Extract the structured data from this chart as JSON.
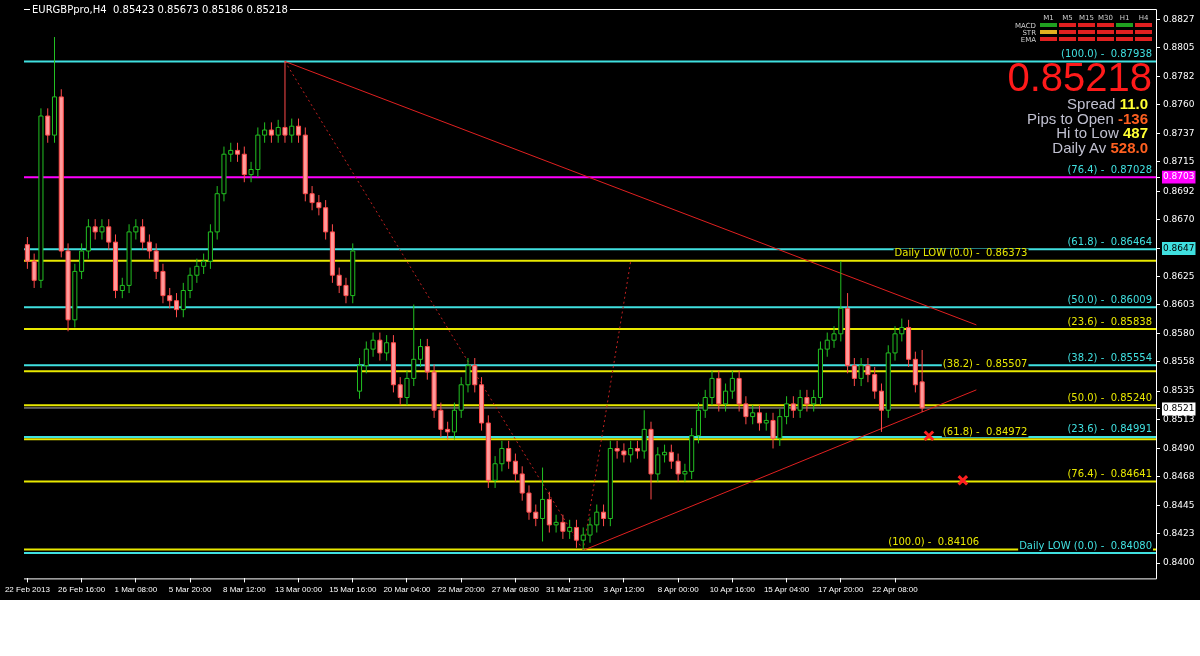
{
  "chart_data": {
    "type": "candlestick",
    "title": "EURGBPpro,H4  0.85423 0.85673 0.85186 0.85218",
    "annotations": [
      "M1",
      "M5",
      "M15",
      "M30",
      "H1",
      "H4",
      "MACD",
      "STR",
      "EMA",
      "0.85218",
      "Spread",
      "11.0",
      "Pips to Open",
      "-136",
      "Hi to Low",
      "487",
      "Daily Av",
      "528.0",
      {
        "text": "(100.0) -  0.87938",
        "y": 0.87938
      },
      {
        "text": "(76.4) -  0.87028",
        "y": 0.87028
      },
      {
        "text": "(61.8) -  0.86464",
        "y": 0.86464
      },
      {
        "text": "(50.0) -  0.86009",
        "y": 0.86009
      },
      {
        "text": "(38.2) -  0.85554",
        "y": 0.85554
      },
      {
        "text": "(23.6) -  0.84991",
        "y": 0.84991
      },
      {
        "text": "Daily LOW (0.0) -  0.84080",
        "y": 0.8408
      },
      {
        "text": "Daily LOW (0.0) -  0.86373",
        "y": 0.86373
      },
      {
        "text": "(23.6) -  0.85838",
        "y": 0.85838
      },
      {
        "text": "(38.2) -  0.85507",
        "y": 0.85507
      },
      {
        "text": "(50.0) -  0.85240",
        "y": 0.8524
      },
      {
        "text": "(61.8) -  0.84972",
        "y": 0.84972
      },
      {
        "text": "(76.4) -  0.84641",
        "y": 0.84641
      },
      {
        "text": "(100.0) -  0.84106",
        "y": 0.84106
      }
    ],
    "ylim": [
      0.8388,
      0.8835
    ],
    "yticks": [
      0.8827,
      0.8805,
      0.8782,
      {
        "value": 0.876,
        "label": "0.8760"
      },
      0.8737,
      0.8715,
      0.8692,
      {
        "value": 0.867,
        "label": "0.8670"
      },
      0.8647,
      0.8625,
      0.8603,
      {
        "value": 0.858,
        "label": "0.8580"
      },
      0.8558,
      0.8535,
      0.8513,
      {
        "value": 0.849,
        "label": "0.8490"
      },
      0.8468,
      0.8445,
      0.8423,
      {
        "value": 0.84,
        "label": "0.8400"
      },
      0.8521,
      0.8703
    ],
    "ref_lines": [
      {
        "axis": "y",
        "value": 0.87938,
        "color": "#40e0e0"
      },
      {
        "axis": "y",
        "value": 0.86464,
        "color": "#40e0e0"
      },
      {
        "axis": "y",
        "value": 0.86009,
        "color": "#40e0e0"
      },
      {
        "axis": "y",
        "value": 0.85554,
        "color": "#40e0e0"
      },
      {
        "axis": "y",
        "value": 0.84991,
        "color": "#40e0e0"
      },
      {
        "axis": "y",
        "value": 0.8408,
        "color": "#40e0e0"
      },
      {
        "axis": "y",
        "value": 0.86373,
        "color": "#e8e800"
      },
      {
        "axis": "y",
        "value": 0.85838,
        "color": "#e8e800"
      },
      {
        "axis": "y",
        "value": 0.85507,
        "color": "#e8e800"
      },
      {
        "axis": "y",
        "value": 0.8524,
        "color": "#e8e800"
      },
      {
        "axis": "y",
        "value": 0.84972,
        "color": "#e8e800"
      },
      {
        "axis": "y",
        "value": 0.84641,
        "color": "#e8e800"
      },
      {
        "axis": "y",
        "value": 0.84106,
        "color": "#e8e800"
      },
      {
        "axis": "y",
        "value": 0.85218,
        "color": "#b0b0b0"
      },
      {
        "axis": "y",
        "value": 0.8703,
        "color": "#ff00ff"
      }
    ],
    "categories": [
      "22 Feb 2013",
      null,
      null,
      null,
      null,
      null,
      null,
      null,
      "26 Feb 16:00",
      null,
      null,
      null,
      null,
      null,
      null,
      null,
      "1 Mar 08:00",
      null,
      null,
      null,
      null,
      null,
      null,
      null,
      "5 Mar 20:00",
      null,
      null,
      null,
      null,
      null,
      null,
      null,
      "8 Mar 12:00",
      null,
      null,
      null,
      null,
      null,
      null,
      null,
      "13 Mar 00:00",
      null,
      null,
      null,
      null,
      null,
      null,
      null,
      "15 Mar 16:00",
      null,
      null,
      null,
      null,
      null,
      null,
      null,
      "20 Mar 04:00",
      null,
      null,
      null,
      null,
      null,
      null,
      null,
      "22 Mar 20:00",
      null,
      null,
      null,
      null,
      null,
      null,
      null,
      "27 Mar 08:00",
      null,
      null,
      null,
      null,
      null,
      null,
      null,
      "31 Mar 21:00",
      null,
      null,
      null,
      null,
      null,
      null,
      null,
      "3 Apr 12:00",
      null,
      null,
      null,
      null,
      null,
      null,
      null,
      "8 Apr 00:00",
      null,
      null,
      null,
      null,
      null,
      null,
      null,
      "10 Apr 16:00",
      null,
      null,
      null,
      null,
      null,
      null,
      null,
      "15 Apr 04:00",
      null,
      null,
      null,
      null,
      null,
      null,
      null,
      "17 Apr 20:00",
      null,
      null,
      null,
      null,
      null,
      null,
      null,
      "22 Apr 08:00",
      null,
      null,
      null,
      null,
      null,
      null,
      null,
      null,
      null,
      null,
      null,
      null,
      null,
      null,
      null,
      null,
      null,
      null,
      null,
      null,
      null,
      null,
      null,
      null,
      null,
      null,
      null,
      null,
      null,
      null,
      null,
      null,
      null,
      null,
      null,
      null,
      null,
      null
    ],
    "ohlc": [
      [
        0.865,
        0.8656,
        0.8631,
        0.8637
      ],
      [
        0.8637,
        0.8643,
        0.8616,
        0.8622
      ],
      [
        0.8622,
        0.8757,
        0.8616,
        0.8751
      ],
      [
        0.8751,
        0.8757,
        0.873,
        0.8736
      ],
      [
        0.8736,
        0.8813,
        0.873,
        0.8766
      ],
      [
        0.8766,
        0.8772,
        0.864,
        0.8645
      ],
      [
        0.8645,
        0.8651,
        0.8582,
        0.8591
      ],
      [
        0.8591,
        0.8635,
        0.8585,
        0.8629
      ],
      [
        0.8629,
        0.8651,
        0.8623,
        0.8645
      ],
      [
        0.8645,
        0.867,
        0.8639,
        0.8664
      ],
      [
        0.8664,
        0.867,
        0.8654,
        0.866
      ],
      [
        0.866,
        0.867,
        0.8654,
        0.8664
      ],
      [
        0.8664,
        0.867,
        0.8646,
        0.8652
      ],
      [
        0.8652,
        0.8658,
        0.8608,
        0.8614
      ],
      [
        0.8614,
        0.8624,
        0.8608,
        0.8618
      ],
      [
        0.8618,
        0.8666,
        0.8612,
        0.866
      ],
      [
        0.866,
        0.867,
        0.8654,
        0.8664
      ],
      [
        0.8664,
        0.867,
        0.8646,
        0.8652
      ],
      [
        0.8652,
        0.8658,
        0.8639,
        0.8645
      ],
      [
        0.8645,
        0.8651,
        0.8623,
        0.8629
      ],
      [
        0.8629,
        0.8635,
        0.8604,
        0.861
      ],
      [
        0.861,
        0.8616,
        0.86,
        0.8606
      ],
      [
        0.8606,
        0.8612,
        0.8593,
        0.8599
      ],
      [
        0.8599,
        0.862,
        0.8593,
        0.8614
      ],
      [
        0.8614,
        0.8632,
        0.8608,
        0.8626
      ],
      [
        0.8626,
        0.8639,
        0.862,
        0.8633
      ],
      [
        0.8633,
        0.8643,
        0.8627,
        0.8637
      ],
      [
        0.8637,
        0.8666,
        0.8631,
        0.866
      ],
      [
        0.866,
        0.8696,
        0.8654,
        0.869
      ],
      [
        0.869,
        0.8727,
        0.8684,
        0.8721
      ],
      [
        0.8721,
        0.873,
        0.8715,
        0.8724
      ],
      [
        0.8724,
        0.873,
        0.8715,
        0.8721
      ],
      [
        0.8721,
        0.8727,
        0.8699,
        0.8705
      ],
      [
        0.8705,
        0.8715,
        0.8699,
        0.8709
      ],
      [
        0.8709,
        0.8742,
        0.8703,
        0.8736
      ],
      [
        0.8736,
        0.8746,
        0.873,
        0.874
      ],
      [
        0.874,
        0.8746,
        0.873,
        0.8736
      ],
      [
        0.8736,
        0.8748,
        0.873,
        0.8742
      ],
      [
        0.8742,
        0.8794,
        0.873,
        0.8736
      ],
      [
        0.8736,
        0.8749,
        0.873,
        0.8743
      ],
      [
        0.8743,
        0.8749,
        0.873,
        0.8736
      ],
      [
        0.8736,
        0.8742,
        0.8684,
        0.869
      ],
      [
        0.869,
        0.8696,
        0.8677,
        0.8683
      ],
      [
        0.8683,
        0.8689,
        0.8673,
        0.8679
      ],
      [
        0.8679,
        0.8685,
        0.8654,
        0.866
      ],
      [
        0.866,
        0.8666,
        0.862,
        0.8626
      ],
      [
        0.8626,
        0.8632,
        0.8612,
        0.8618
      ],
      [
        0.8618,
        0.8624,
        0.8604,
        0.861
      ],
      [
        0.861,
        0.8651,
        0.8604,
        0.8645
      ],
      [
        0.8535,
        0.8561,
        0.8529,
        0.8555
      ],
      [
        0.8555,
        0.8574,
        0.8549,
        0.8568
      ],
      [
        0.8568,
        0.8581,
        0.8562,
        0.8575
      ],
      [
        0.8575,
        0.8581,
        0.8559,
        0.8565
      ],
      [
        0.8565,
        0.8579,
        0.8559,
        0.8573
      ],
      [
        0.8573,
        0.8579,
        0.8534,
        0.854
      ],
      [
        0.854,
        0.8546,
        0.8524,
        0.853
      ],
      [
        0.853,
        0.8551,
        0.8524,
        0.8545
      ],
      [
        0.8545,
        0.8603,
        0.8539,
        0.856
      ],
      [
        0.856,
        0.8576,
        0.8554,
        0.857
      ],
      [
        0.857,
        0.8576,
        0.8544,
        0.855
      ],
      [
        0.855,
        0.8556,
        0.8514,
        0.852
      ],
      [
        0.852,
        0.8526,
        0.8499,
        0.8505
      ],
      [
        0.8505,
        0.8511,
        0.8497,
        0.8503
      ],
      [
        0.8503,
        0.8526,
        0.8497,
        0.852
      ],
      [
        0.852,
        0.8546,
        0.8514,
        0.854
      ],
      [
        0.854,
        0.8561,
        0.8534,
        0.8555
      ],
      [
        0.8555,
        0.8561,
        0.8534,
        0.854
      ],
      [
        0.854,
        0.8546,
        0.8504,
        0.851
      ],
      [
        0.851,
        0.8516,
        0.8459,
        0.8465
      ],
      [
        0.8465,
        0.8484,
        0.8459,
        0.8478
      ],
      [
        0.8478,
        0.8496,
        0.8472,
        0.849
      ],
      [
        0.849,
        0.8496,
        0.8474,
        0.848
      ],
      [
        0.848,
        0.8486,
        0.8464,
        0.847
      ],
      [
        0.847,
        0.8476,
        0.8449,
        0.8455
      ],
      [
        0.8455,
        0.8461,
        0.8434,
        0.844
      ],
      [
        0.844,
        0.8446,
        0.8429,
        0.8435
      ],
      [
        0.8435,
        0.8475,
        0.8417,
        0.845
      ],
      [
        0.845,
        0.8456,
        0.8424,
        0.843
      ],
      [
        0.843,
        0.8438,
        0.8424,
        0.8432
      ],
      [
        0.8432,
        0.8438,
        0.8419,
        0.8425
      ],
      [
        0.8425,
        0.8434,
        0.8419,
        0.8428
      ],
      [
        0.8428,
        0.8434,
        0.8412,
        0.8418
      ],
      [
        0.8418,
        0.8428,
        0.841,
        0.8422
      ],
      [
        0.8422,
        0.8436,
        0.8416,
        0.843
      ],
      [
        0.843,
        0.8446,
        0.8424,
        0.844
      ],
      [
        0.844,
        0.8446,
        0.8429,
        0.8435
      ],
      [
        0.8435,
        0.8496,
        0.8429,
        0.849
      ],
      [
        0.849,
        0.8496,
        0.8482,
        0.8488
      ],
      [
        0.8488,
        0.8494,
        0.8479,
        0.8485
      ],
      [
        0.8485,
        0.8496,
        0.8479,
        0.849
      ],
      [
        0.849,
        0.8496,
        0.8482,
        0.8488
      ],
      [
        0.8488,
        0.852,
        0.8482,
        0.8505
      ],
      [
        0.8505,
        0.8511,
        0.845,
        0.847
      ],
      [
        0.847,
        0.8491,
        0.8464,
        0.8485
      ],
      [
        0.8485,
        0.8493,
        0.8479,
        0.8487
      ],
      [
        0.8487,
        0.8493,
        0.8474,
        0.848
      ],
      [
        0.848,
        0.8486,
        0.8464,
        0.847
      ],
      [
        0.847,
        0.8478,
        0.8464,
        0.8472
      ],
      [
        0.8472,
        0.8506,
        0.8466,
        0.85
      ],
      [
        0.85,
        0.8526,
        0.8494,
        0.852
      ],
      [
        0.852,
        0.8536,
        0.8514,
        0.853
      ],
      [
        0.853,
        0.8551,
        0.8524,
        0.8545
      ],
      [
        0.8545,
        0.8551,
        0.8519,
        0.8525
      ],
      [
        0.8525,
        0.8541,
        0.8519,
        0.8535
      ],
      [
        0.8535,
        0.8551,
        0.8529,
        0.8545
      ],
      [
        0.8545,
        0.8551,
        0.8519,
        0.8525
      ],
      [
        0.8525,
        0.8531,
        0.8509,
        0.8515
      ],
      [
        0.8515,
        0.8524,
        0.8509,
        0.8518
      ],
      [
        0.8518,
        0.8524,
        0.8504,
        0.851
      ],
      [
        0.851,
        0.8518,
        0.8504,
        0.8512
      ],
      [
        0.8512,
        0.8518,
        0.849,
        0.8498
      ],
      [
        0.8498,
        0.8521,
        0.8492,
        0.8515
      ],
      [
        0.8515,
        0.8531,
        0.8509,
        0.8525
      ],
      [
        0.8525,
        0.8531,
        0.8514,
        0.852
      ],
      [
        0.852,
        0.8536,
        0.8514,
        0.853
      ],
      [
        0.853,
        0.8536,
        0.8519,
        0.8525
      ],
      [
        0.8525,
        0.8536,
        0.8519,
        0.853
      ],
      [
        0.853,
        0.8574,
        0.8524,
        0.8568
      ],
      [
        0.8568,
        0.8581,
        0.8562,
        0.8575
      ],
      [
        0.8575,
        0.8586,
        0.8569,
        0.858
      ],
      [
        0.858,
        0.8637,
        0.8574,
        0.86
      ],
      [
        0.86,
        0.8612,
        0.8549,
        0.8555
      ],
      [
        0.8555,
        0.8561,
        0.8539,
        0.8545
      ],
      [
        0.8545,
        0.8561,
        0.8539,
        0.8555
      ],
      [
        0.8555,
        0.8561,
        0.8542,
        0.8548
      ],
      [
        0.8548,
        0.8554,
        0.8529,
        0.8535
      ],
      [
        0.8535,
        0.8541,
        0.8503,
        0.852
      ],
      [
        0.852,
        0.8571,
        0.8514,
        0.8565
      ],
      [
        0.8565,
        0.8586,
        0.8559,
        0.858
      ],
      [
        0.858,
        0.8592,
        0.8574,
        0.8585
      ],
      [
        0.8585,
        0.8591,
        0.8554,
        0.856
      ],
      [
        0.856,
        0.8566,
        0.8534,
        0.854
      ],
      [
        0.85423,
        0.85673,
        0.85186,
        0.85218
      ],
      null,
      null,
      null,
      null,
      null,
      null,
      null,
      null,
      null,
      null,
      null,
      null,
      null,
      null,
      null,
      null,
      null,
      null,
      null,
      null,
      null,
      null,
      null,
      null,
      null,
      null,
      null,
      null,
      null,
      null,
      null,
      null,
      null,
      null
    ],
    "series": [
      {
        "type": "line",
        "color": "#e02020",
        "values": [
          null,
          null,
          null,
          null,
          null,
          null,
          null,
          null,
          null,
          null,
          null,
          null,
          null,
          null,
          null,
          null,
          null,
          null,
          null,
          null,
          null,
          null,
          null,
          null,
          null,
          null,
          null,
          null,
          null,
          null,
          null,
          null,
          null,
          null,
          null,
          null,
          null,
          null,
          0.87938,
          null,
          null,
          null,
          null,
          null,
          null,
          null,
          null,
          null,
          null,
          null,
          null,
          null,
          null,
          null,
          null,
          null,
          null,
          null,
          null,
          null,
          null,
          null,
          null,
          null,
          null,
          null,
          null,
          null,
          null,
          null,
          null,
          null,
          null,
          null,
          null,
          null,
          null,
          null,
          null,
          null,
          null,
          null,
          null,
          null,
          null,
          null,
          null,
          null,
          null,
          null,
          null,
          null,
          null,
          null,
          null,
          null,
          null,
          null,
          null,
          null,
          null,
          null,
          null,
          null,
          null,
          null,
          null,
          null,
          null,
          null,
          null,
          null,
          null,
          null,
          null,
          null,
          null,
          null,
          null,
          null,
          null,
          null,
          null,
          null,
          null,
          null,
          null,
          null,
          null,
          null,
          null,
          null,
          null,
          null,
          null,
          null,
          null,
          null,
          null,
          null,
          0.8587,
          null,
          null,
          null,
          null,
          null,
          null,
          null,
          null,
          null,
          null,
          null,
          null,
          null,
          null,
          null,
          null,
          null,
          null,
          null,
          null,
          null,
          null,
          null,
          null,
          null,
          null
        ]
      },
      {
        "type": "line",
        "color": "#e02020",
        "values": [
          null,
          null,
          null,
          null,
          null,
          null,
          null,
          null,
          null,
          null,
          null,
          null,
          null,
          null,
          null,
          null,
          null,
          null,
          null,
          null,
          null,
          null,
          null,
          null,
          null,
          null,
          null,
          null,
          null,
          null,
          null,
          null,
          null,
          null,
          null,
          null,
          null,
          null,
          null,
          null,
          null,
          null,
          null,
          null,
          null,
          null,
          null,
          null,
          null,
          null,
          null,
          null,
          null,
          null,
          null,
          null,
          null,
          null,
          null,
          null,
          null,
          null,
          null,
          null,
          null,
          null,
          null,
          null,
          null,
          null,
          null,
          null,
          null,
          null,
          null,
          null,
          null,
          null,
          null,
          null,
          null,
          null,
          0.841,
          null,
          null,
          null,
          null,
          null,
          null,
          null,
          null,
          null,
          null,
          null,
          null,
          null,
          null,
          null,
          null,
          null,
          null,
          null,
          null,
          null,
          null,
          null,
          null,
          null,
          null,
          null,
          null,
          null,
          null,
          null,
          null,
          null,
          null,
          null,
          null,
          null,
          null,
          null,
          null,
          null,
          null,
          null,
          null,
          null,
          null,
          null,
          null,
          null,
          null,
          null,
          null,
          null,
          null,
          null,
          null,
          null,
          0.8536,
          null,
          null,
          null,
          null,
          null,
          null,
          null,
          null,
          null,
          null,
          null,
          null,
          null,
          null,
          null,
          null,
          null,
          null,
          null,
          null,
          null,
          null,
          null,
          null,
          null,
          null
        ]
      },
      {
        "type": "line",
        "color": "#c02020",
        "line_style": "dotted",
        "values": [
          null,
          null,
          null,
          null,
          null,
          null,
          null,
          null,
          null,
          null,
          null,
          null,
          null,
          null,
          null,
          null,
          null,
          null,
          null,
          null,
          null,
          null,
          null,
          null,
          null,
          null,
          null,
          null,
          null,
          null,
          null,
          null,
          null,
          null,
          null,
          null,
          null,
          null,
          0.87938,
          null,
          null,
          null,
          null,
          null,
          null,
          null,
          null,
          null,
          null,
          null,
          null,
          null,
          null,
          null,
          null,
          null,
          null,
          null,
          null,
          null,
          null,
          null,
          null,
          null,
          null,
          null,
          null,
          null,
          null,
          null,
          null,
          null,
          null,
          null,
          null,
          null,
          null,
          null,
          null,
          null,
          null,
          null,
          0.841,
          null,
          null,
          null,
          null,
          null,
          null,
          null,
          null,
          null,
          null,
          null,
          null,
          null,
          null,
          null,
          null,
          null,
          null,
          null,
          null,
          null,
          null,
          null,
          null,
          null,
          null,
          null,
          null,
          null,
          null,
          null,
          null,
          null,
          null,
          null,
          null,
          null,
          null,
          null,
          null,
          null,
          null,
          null,
          null,
          null,
          null,
          null,
          null,
          null,
          null,
          null,
          null,
          null,
          null,
          null,
          null,
          null,
          null,
          null,
          null,
          null,
          null,
          null,
          null,
          null,
          null,
          null,
          null,
          null,
          null,
          null,
          null,
          null,
          null,
          null,
          null,
          null,
          null,
          null,
          null,
          null,
          null,
          null,
          null
        ]
      },
      {
        "type": "line",
        "color": "#c02020",
        "line_style": "dotted",
        "values": [
          null,
          null,
          null,
          null,
          null,
          null,
          null,
          null,
          null,
          null,
          null,
          null,
          null,
          null,
          null,
          null,
          null,
          null,
          null,
          null,
          null,
          null,
          null,
          null,
          null,
          null,
          null,
          null,
          null,
          null,
          null,
          null,
          null,
          null,
          null,
          null,
          null,
          null,
          null,
          null,
          null,
          null,
          null,
          null,
          null,
          null,
          null,
          null,
          null,
          null,
          null,
          null,
          null,
          null,
          null,
          null,
          null,
          null,
          null,
          null,
          null,
          null,
          null,
          null,
          null,
          null,
          null,
          null,
          null,
          null,
          null,
          null,
          null,
          null,
          null,
          null,
          null,
          null,
          null,
          null,
          null,
          null,
          0.841,
          null,
          null,
          null,
          null,
          null,
          null,
          0.8637,
          null,
          null,
          null,
          null,
          null,
          null,
          null,
          null,
          null,
          null,
          null,
          null,
          null,
          null,
          null,
          null,
          null,
          null,
          null,
          null,
          null,
          null,
          null,
          null,
          null,
          null,
          null,
          null,
          null,
          null,
          null,
          null,
          null,
          null,
          null,
          null,
          null,
          null,
          null,
          null,
          null,
          null,
          null,
          null,
          null,
          null,
          null,
          null,
          null,
          null,
          null,
          null,
          null,
          null,
          null,
          null,
          null,
          null,
          null,
          null,
          null,
          null,
          null,
          null,
          null,
          null,
          null,
          null,
          null,
          null,
          null,
          null,
          null,
          null,
          null,
          null,
          null
        ]
      },
      {
        "type": "scatter",
        "color": "#ff2020",
        "marker": "cross",
        "values": [
          null,
          null,
          null,
          null,
          null,
          null,
          null,
          null,
          null,
          null,
          null,
          null,
          null,
          null,
          null,
          null,
          null,
          null,
          null,
          null,
          null,
          null,
          null,
          null,
          null,
          null,
          null,
          null,
          null,
          null,
          null,
          null,
          null,
          null,
          null,
          null,
          null,
          null,
          null,
          null,
          null,
          null,
          null,
          null,
          null,
          null,
          null,
          null,
          null,
          null,
          null,
          null,
          null,
          null,
          null,
          null,
          null,
          null,
          null,
          null,
          null,
          null,
          null,
          null,
          null,
          null,
          null,
          null,
          null,
          null,
          null,
          null,
          null,
          null,
          null,
          null,
          null,
          null,
          null,
          null,
          null,
          null,
          null,
          null,
          null,
          null,
          null,
          null,
          null,
          null,
          null,
          null,
          null,
          null,
          null,
          null,
          null,
          null,
          null,
          null,
          null,
          null,
          null,
          null,
          null,
          null,
          null,
          null,
          null,
          null,
          null,
          null,
          null,
          null,
          null,
          null,
          null,
          null,
          null,
          null,
          null,
          null,
          null,
          null,
          null,
          null,
          null,
          null,
          null,
          null,
          null,
          null,
          null,
          0.85,
          null,
          null,
          null,
          null,
          0.8465,
          null,
          null,
          null,
          null,
          null,
          null,
          null,
          null,
          null,
          null,
          null,
          null,
          null,
          null,
          null,
          null,
          null,
          null,
          null,
          null,
          null,
          null,
          null,
          null,
          null,
          null,
          null,
          null
        ]
      }
    ]
  }
}
